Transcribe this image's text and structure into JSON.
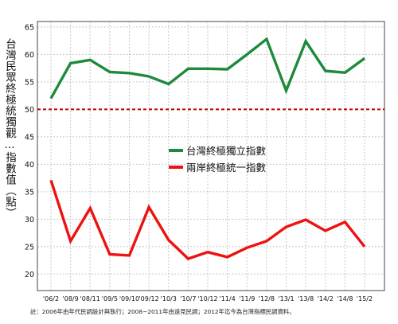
{
  "chart_data": {
    "type": "line",
    "title": "",
    "ylabel": "台灣民眾終極統獨觀…指數值（點）",
    "xlabel": "",
    "categories": [
      "'06/2",
      "'08/9",
      "'08/11",
      "'09/5",
      "'09/10",
      "'09/12",
      "'10/3",
      "'10/7",
      "'10/12",
      "'11/4",
      "'11/9",
      "'12/8",
      "'13/1",
      "'13/8",
      "'14/2",
      "'14/8",
      "'15/2"
    ],
    "ylim": [
      17,
      66
    ],
    "yticks": [
      20,
      25,
      30,
      35,
      40,
      45,
      50,
      55,
      60,
      65
    ],
    "grid": true,
    "legend_position": "center",
    "reference_line": {
      "value": 50,
      "color": "#c00000",
      "style": "dashed"
    },
    "series": [
      {
        "name": "台灣終極獨立指數",
        "color": "#1e8a3c",
        "values": [
          52.0,
          58.4,
          59.0,
          56.8,
          56.6,
          56.0,
          54.6,
          57.4,
          57.4,
          57.3,
          60.0,
          62.8,
          53.4,
          62.4,
          57.0,
          56.7,
          59.3
        ]
      },
      {
        "name": "兩岸終極統一指數",
        "color": "#ee1111",
        "values": [
          37.1,
          26.0,
          32.0,
          23.6,
          23.4,
          32.2,
          26.2,
          22.8,
          24.0,
          23.1,
          24.8,
          26.0,
          28.6,
          29.9,
          27.9,
          29.5,
          25.0
        ]
      }
    ]
  },
  "note": "註：2006年由年代民調設計與執行；2008~2011年由遠見民調；2012年迄今為台灣指標民調資料。"
}
